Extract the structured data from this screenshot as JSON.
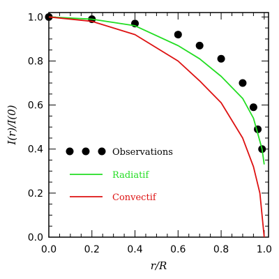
{
  "chart_data": {
    "type": "line",
    "xlabel": "r/R",
    "ylabel": "I(r)/I(0)",
    "xlim": [
      0.0,
      1.02
    ],
    "ylim": [
      0.0,
      1.02
    ],
    "x_ticks": [
      "0.0",
      "0.2",
      "0.4",
      "0.6",
      "0.8",
      "1.0"
    ],
    "y_ticks": [
      "0.0",
      "0.2",
      "0.4",
      "0.6",
      "0.8",
      "1.0"
    ],
    "grid": false,
    "legend_position": "center-left",
    "series": [
      {
        "name": "Observations",
        "kind": "scatter",
        "color": "#000000",
        "x": [
          0.0,
          0.2,
          0.4,
          0.6,
          0.7,
          0.8,
          0.9,
          0.95,
          0.97,
          0.99
        ],
        "y": [
          1.0,
          0.99,
          0.97,
          0.92,
          0.87,
          0.81,
          0.7,
          0.59,
          0.49,
          0.4
        ]
      },
      {
        "name": "Radiatif",
        "kind": "line",
        "color": "#22dd22",
        "x": [
          0.0,
          0.2,
          0.4,
          0.6,
          0.7,
          0.8,
          0.9,
          0.95,
          0.97,
          0.99,
          1.0
        ],
        "y": [
          1.0,
          0.99,
          0.96,
          0.87,
          0.81,
          0.73,
          0.63,
          0.54,
          0.47,
          0.4,
          0.33
        ]
      },
      {
        "name": "Convectif",
        "kind": "line",
        "color": "#dd1111",
        "x": [
          0.0,
          0.2,
          0.4,
          0.6,
          0.7,
          0.8,
          0.9,
          0.95,
          0.98,
          0.99,
          1.0
        ],
        "y": [
          1.0,
          0.98,
          0.92,
          0.8,
          0.71,
          0.61,
          0.45,
          0.32,
          0.2,
          0.1,
          0.0
        ]
      }
    ]
  }
}
